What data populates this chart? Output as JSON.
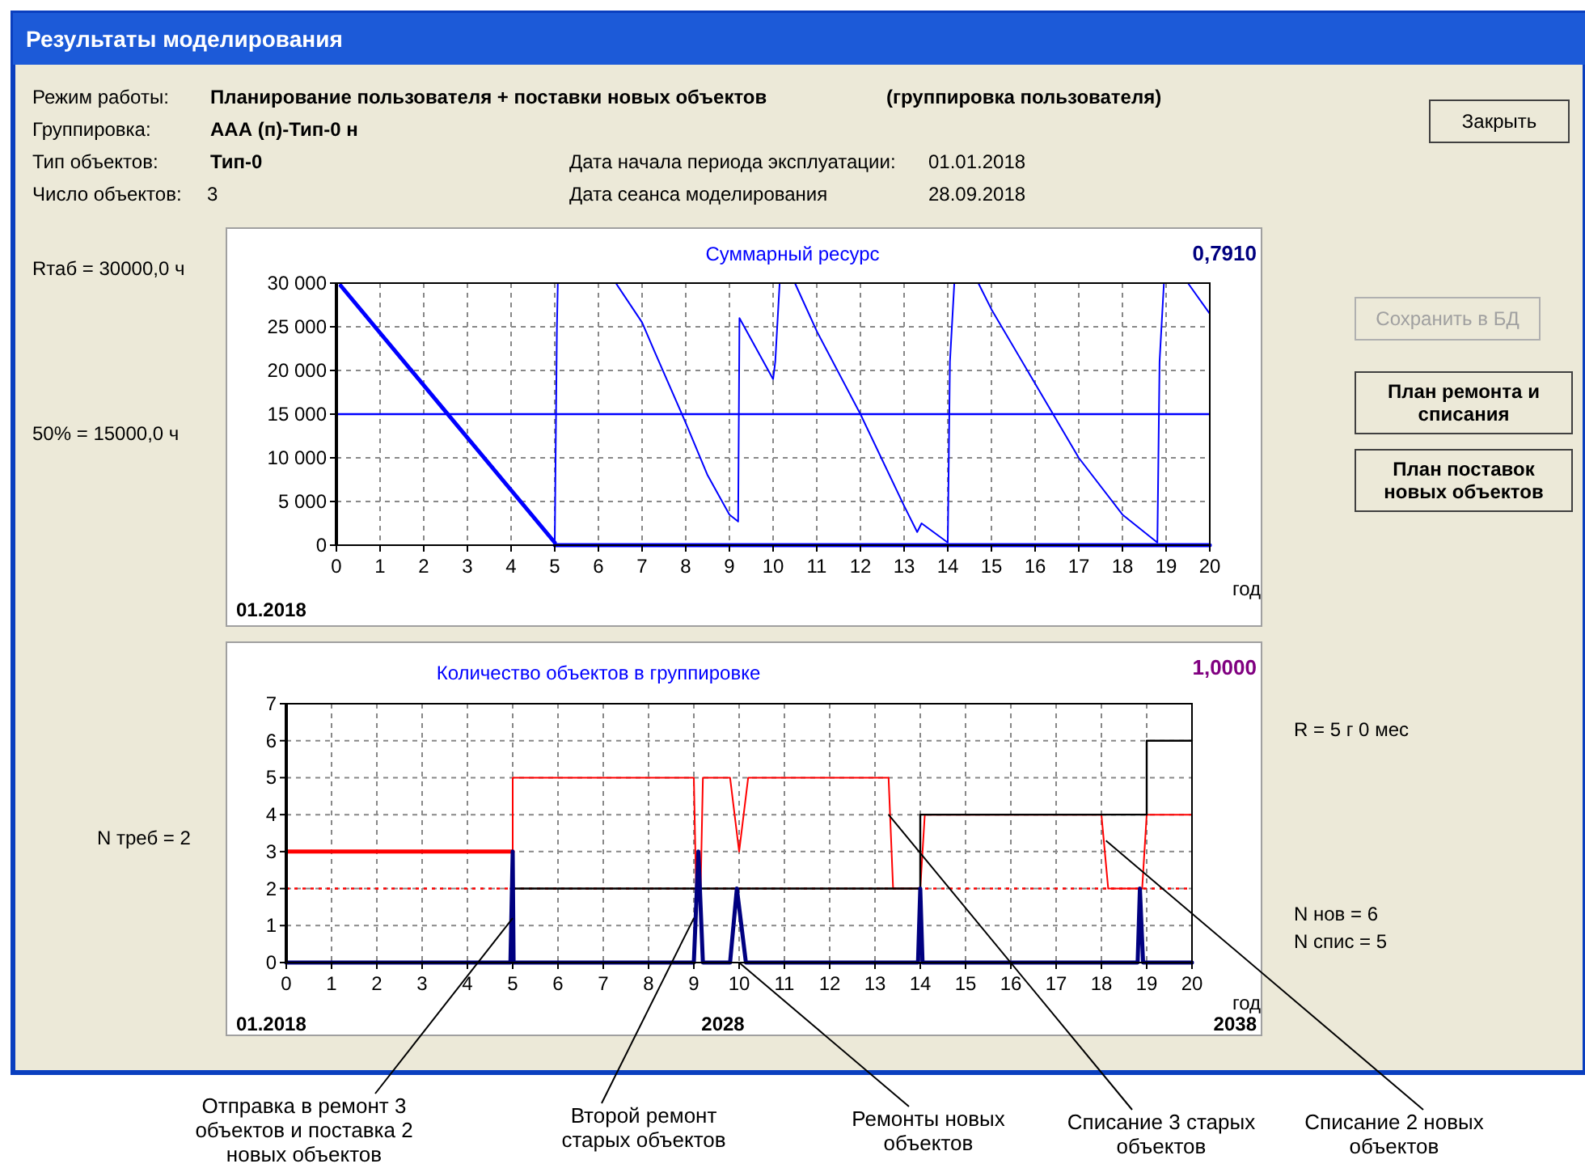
{
  "chart_data": [
    {
      "type": "line",
      "title": "Суммарный ресурс",
      "xlabel": "год",
      "xlim": [
        0,
        20
      ],
      "xticks": [
        0,
        1,
        2,
        3,
        4,
        5,
        6,
        7,
        8,
        9,
        10,
        11,
        12,
        13,
        14,
        15,
        16,
        17,
        18,
        19,
        20
      ],
      "ylim": [
        0,
        30000
      ],
      "yticks": [
        0,
        {
          "value": 5000,
          "label": "5 000"
        },
        {
          "value": 10000,
          "label": "10 000"
        },
        {
          "value": 15000,
          "label": "15 000"
        },
        {
          "value": 20000,
          "label": "20 000"
        },
        {
          "value": 25000,
          "label": "25 000"
        },
        {
          "value": 30000,
          "label": "30 000"
        }
      ],
      "grid": true,
      "line_style": "solid",
      "ref_lines": [
        {
          "axis": "y",
          "value": 15000,
          "color": "#0000ff"
        }
      ],
      "series": [
        {
          "color": "#0000ff",
          "x": [
            0.1,
            5
          ],
          "values": [
            29700,
            300
          ]
        },
        {
          "color": "#0000ff",
          "x": [
            5,
            5.05,
            5.07,
            null,
            6.4,
            7,
            7.3,
            8,
            8.5,
            9,
            9.2,
            9.23,
            10,
            10.05,
            10.15,
            null,
            10.5,
            11,
            12,
            13,
            13.3,
            13.4,
            14,
            14.05,
            14.15,
            null,
            14.7,
            15,
            16,
            17,
            18,
            18.8,
            18.85,
            18.95,
            null,
            19.5,
            20
          ],
          "values": [
            300,
            25000,
            30000,
            null,
            30000,
            25500,
            22000,
            14000,
            8000,
            3500,
            2700,
            26000,
            19000,
            21000,
            30000,
            null,
            30000,
            24500,
            15000,
            4500,
            1500,
            2500,
            300,
            21000,
            30000,
            null,
            30000,
            27000,
            18500,
            10000,
            3500,
            300,
            21000,
            30000,
            null,
            30000,
            26500
          ]
        },
        {
          "color": "#0000ff",
          "x": [
            5,
            20
          ],
          "values": [
            0,
            0
          ]
        }
      ],
      "annotations": [
        "Результаты моделирования",
        "Режим работы:",
        "Планирование пользователя + поставки новых объектов",
        "(группировка пользователя)",
        "Группировка:",
        "ААА (п)-Тип-0 н",
        "Тип объектов:",
        "Тип-0",
        "Дата начала периода эксплуатации:",
        "01.01.2018",
        "Число объектов:",
        "3",
        "Дата сеанса моделирования",
        "28.09.2018",
        "Rтаб = 30000,0 ч",
        "0,7910",
        "01.2018",
        "Закрыть",
        "Сохранить в БД",
        "План ремонта и списания",
        "План поставок новых объектов",
        "50% = 15000,0 ч"
      ]
    },
    {
      "type": "line",
      "title": "Количество объектов в группировке",
      "xlabel": "год",
      "xlim": [
        0,
        20
      ],
      "xticks": [
        0,
        1,
        2,
        3,
        4,
        5,
        6,
        7,
        8,
        9,
        10,
        11,
        12,
        13,
        14,
        15,
        16,
        17,
        18,
        19,
        20
      ],
      "ylim": [
        0,
        7
      ],
      "yticks": [
        0,
        1,
        2,
        3,
        4,
        5,
        6,
        7
      ],
      "grid": true,
      "line_style": "solid",
      "ref_lines": [
        {
          "axis": "y",
          "value": 2,
          "color": "#ff0000",
          "line_style": "dotted"
        }
      ],
      "series": [
        {
          "color": "#ff0000",
          "x": [
            0,
            5
          ],
          "values": [
            3,
            3
          ]
        },
        {
          "color": "#ff0000",
          "x": [
            5,
            5,
            9,
            9.05,
            9.15,
            9.2,
            9.8,
            10,
            10.2,
            13.3,
            13.4,
            14,
            14.1,
            18,
            18.15,
            18.9,
            19,
            20
          ],
          "values": [
            3,
            5,
            5,
            2,
            2,
            5,
            5,
            3,
            5,
            5,
            2,
            2,
            4,
            4,
            2,
            2,
            4,
            4
          ]
        },
        {
          "color": "#000000",
          "x": [
            5,
            14,
            14,
            19,
            19,
            20
          ],
          "values": [
            2,
            2,
            4,
            4,
            6,
            6
          ]
        },
        {
          "color": "#000080",
          "x": [
            0,
            4.95,
            5,
            5.02,
            9,
            9.1,
            9.2,
            9.8,
            9.95,
            10.15,
            13.95,
            14,
            14.05,
            18.8,
            18.85,
            18.92,
            20
          ],
          "values": [
            0,
            0,
            3,
            0,
            0,
            3,
            0,
            0,
            2,
            0,
            0,
            2,
            0,
            0,
            2,
            0,
            0
          ]
        }
      ],
      "annotations": [
        "1,0000",
        "R  = 5 г 0 мес",
        "N нов  = 6",
        "N спис = 5",
        "01.2018",
        "2028",
        "2038",
        {
          "text": "Отправка в ремонт 3 объектов и поставка 2 новых объектов",
          "x": 5,
          "y": 1.2
        },
        {
          "text": "Второй ремонт старых объектов",
          "x": 9,
          "y": 1.2
        },
        {
          "text": "Ремонты новых объектов",
          "x": 10,
          "y": 0
        },
        {
          "text": "Списание 3 старых объектов",
          "x": 13.3,
          "y": 4
        },
        {
          "text": "Списание 2 новых объектов",
          "x": 18.1,
          "y": 3.3
        },
        "N треб = 2"
      ]
    }
  ]
}
